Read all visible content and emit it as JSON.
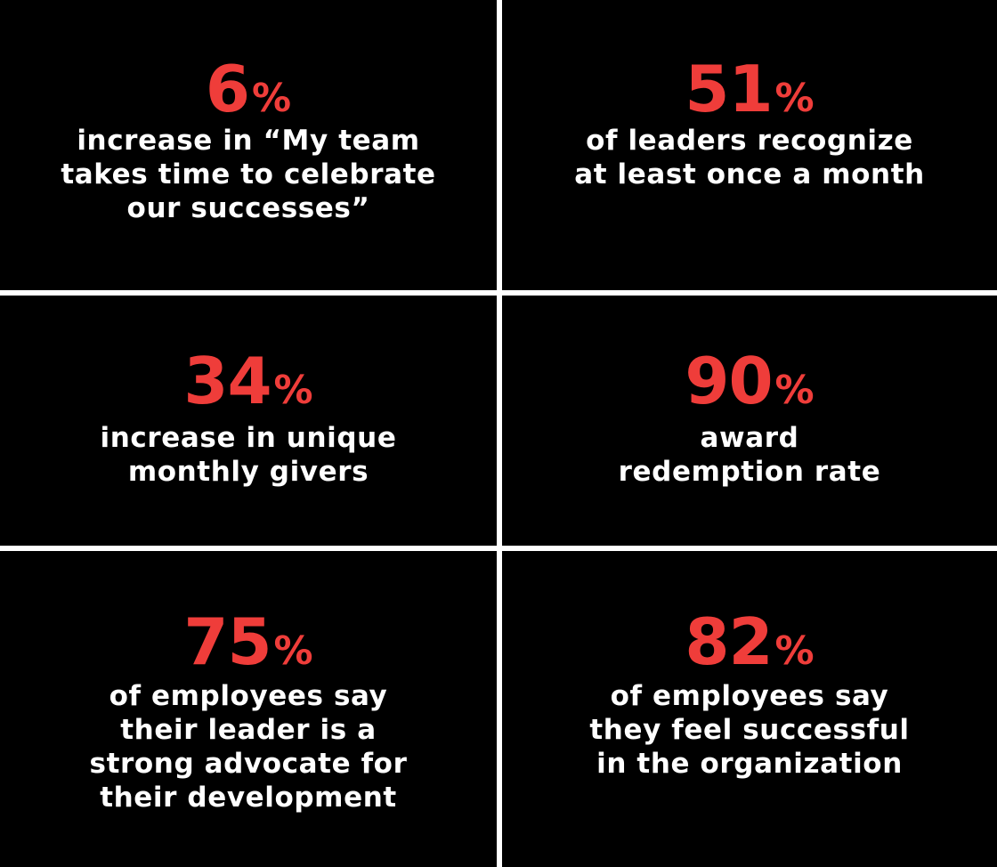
{
  "colors": {
    "background": "#000000",
    "divider": "#ffffff",
    "accent": "#ef3d3a",
    "text": "#ffffff"
  },
  "stats": [
    {
      "number": "6",
      "percent_sign": "%",
      "lines": [
        "increase in “My team",
        "takes time to celebrate",
        "our successes”"
      ]
    },
    {
      "number": "51",
      "percent_sign": "%",
      "lines": [
        "of leaders recognize",
        "at least once a month"
      ]
    },
    {
      "number": "34",
      "percent_sign": "%",
      "lines": [
        "increase in unique",
        "monthly givers"
      ]
    },
    {
      "number": "90",
      "percent_sign": "%",
      "lines": [
        "award",
        "redemption rate"
      ]
    },
    {
      "number": "75",
      "percent_sign": "%",
      "lines": [
        "of employees say",
        "their leader is a",
        "strong advocate for",
        "their development"
      ]
    },
    {
      "number": "82",
      "percent_sign": "%",
      "lines": [
        "of employees say",
        "they feel successful",
        "in the organization"
      ]
    }
  ]
}
